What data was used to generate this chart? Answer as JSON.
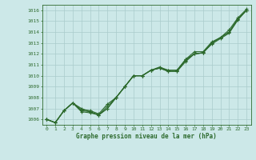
{
  "x": [
    0,
    1,
    2,
    3,
    4,
    5,
    6,
    7,
    8,
    9,
    10,
    11,
    12,
    13,
    14,
    15,
    16,
    17,
    18,
    19,
    20,
    21,
    22,
    23
  ],
  "line1": [
    1006.0,
    1005.7,
    1006.8,
    1007.5,
    1006.9,
    1006.8,
    1006.5,
    1007.4,
    1008.0,
    1009.0,
    1010.0,
    1010.0,
    1010.5,
    1010.7,
    1010.5,
    1010.5,
    1011.5,
    1012.0,
    1012.1,
    1013.0,
    1013.5,
    1014.0,
    1015.2,
    1016.0
  ],
  "line2": [
    1006.0,
    1005.7,
    1006.8,
    1007.5,
    1006.7,
    1006.6,
    1006.4,
    1007.0,
    1008.0,
    1009.0,
    1010.0,
    1010.0,
    1010.5,
    1010.7,
    1010.4,
    1010.4,
    1011.3,
    1012.0,
    1012.1,
    1012.9,
    1013.4,
    1013.9,
    1015.1,
    1016.0
  ],
  "line3": [
    1006.0,
    1005.7,
    1006.8,
    1007.5,
    1007.0,
    1006.7,
    1006.4,
    1007.0,
    1008.0,
    1009.0,
    1010.0,
    1010.0,
    1010.5,
    1010.8,
    1010.5,
    1010.5,
    1011.5,
    1012.2,
    1012.2,
    1013.1,
    1013.5,
    1014.2,
    1015.3,
    1016.1
  ],
  "line4": [
    1006.0,
    1005.7,
    1006.8,
    1007.5,
    1006.8,
    1006.7,
    1006.4,
    1007.2,
    1008.0,
    1009.0,
    1010.0,
    1010.0,
    1010.5,
    1010.7,
    1010.4,
    1010.4,
    1011.4,
    1012.0,
    1012.1,
    1013.0,
    1013.5,
    1014.0,
    1015.2,
    1016.0
  ],
  "ylim": [
    1005.5,
    1016.5
  ],
  "yticks": [
    1006,
    1007,
    1008,
    1009,
    1010,
    1011,
    1012,
    1013,
    1014,
    1015,
    1016
  ],
  "xticks": [
    0,
    1,
    2,
    3,
    4,
    5,
    6,
    7,
    8,
    9,
    10,
    11,
    12,
    13,
    14,
    15,
    16,
    17,
    18,
    19,
    20,
    21,
    22,
    23
  ],
  "xlabel": "Graphe pression niveau de la mer (hPa)",
  "line_color": "#2d6a2d",
  "bg_color": "#cce8e8",
  "grid_color": "#aacccc",
  "marker": "+",
  "marker_size": 3,
  "linewidth": 0.8
}
